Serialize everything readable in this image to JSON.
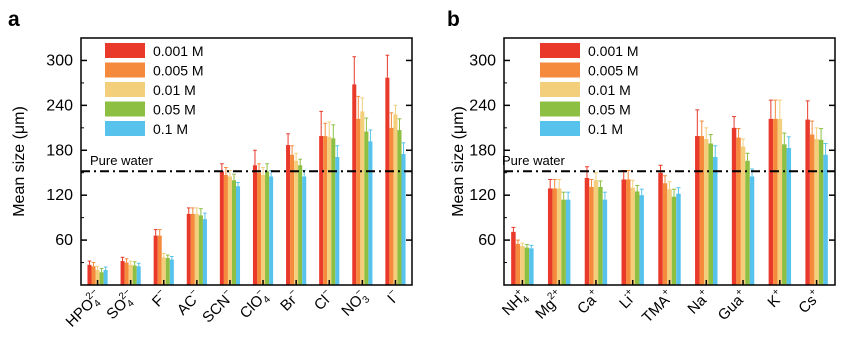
{
  "colors": {
    "c0.001": "#e8392b",
    "c0.005": "#f58a3c",
    "c0.01": "#f3cf7c",
    "c0.05": "#8dbf42",
    "c0.1": "#57c3ec",
    "error": "#d64a34",
    "axis": "#000000"
  },
  "chart_data": [
    {
      "type": "bar",
      "panel": "a",
      "ylabel": "Mean size (μm)",
      "ylim": [
        0,
        330
      ],
      "yticks": [
        60,
        120,
        180,
        240,
        300
      ],
      "legend_position": "top-left",
      "reference_line": {
        "label": "Pure water",
        "value": 152
      },
      "categories": [
        "HPO42−",
        "SO42−",
        "F−",
        "AC−",
        "SCN−",
        "ClO4−",
        "Br−",
        "Cl−",
        "NO3−",
        "I−"
      ],
      "category_labels": [
        {
          "base": "HPO",
          "sub": "4",
          "sup": "2−"
        },
        {
          "base": "SO",
          "sub": "4",
          "sup": "2−"
        },
        {
          "base": "F",
          "sub": "",
          "sup": "−"
        },
        {
          "base": "AC",
          "sub": "",
          "sup": "−"
        },
        {
          "base": "SCN",
          "sub": "",
          "sup": "−"
        },
        {
          "base": "ClO",
          "sub": "4",
          "sup": "−"
        },
        {
          "base": "Br",
          "sub": "",
          "sup": "−"
        },
        {
          "base": "Cl",
          "sub": "",
          "sup": "−"
        },
        {
          "base": "NO",
          "sub": "3",
          "sup": "−"
        },
        {
          "base": "I",
          "sub": "",
          "sup": "−"
        }
      ],
      "series": [
        {
          "name": "0.001 M",
          "color": "#e8392b",
          "values": [
            27,
            32,
            66,
            95,
            152,
            160,
            187,
            199,
            268,
            277
          ],
          "errors": [
            5,
            5,
            8,
            8,
            10,
            20,
            15,
            33,
            37,
            30
          ]
        },
        {
          "name": "0.005 M",
          "color": "#f58a3c",
          "values": [
            25,
            30,
            66,
            95,
            147,
            150,
            174,
            199,
            222,
            210
          ],
          "errors": [
            5,
            5,
            8,
            8,
            10,
            12,
            12,
            17,
            30,
            20
          ]
        },
        {
          "name": "0.01 M",
          "color": "#f3cf7c",
          "values": [
            20,
            27,
            37,
            95,
            145,
            147,
            166,
            198,
            232,
            228
          ],
          "errors": [
            5,
            5,
            5,
            8,
            8,
            10,
            10,
            20,
            18,
            12
          ]
        },
        {
          "name": "0.05 M",
          "color": "#8dbf42",
          "values": [
            17,
            26,
            36,
            93,
            140,
            152,
            160,
            196,
            205,
            207
          ],
          "errors": [
            5,
            5,
            4,
            9,
            8,
            10,
            8,
            18,
            18,
            15
          ]
        },
        {
          "name": "0.1 M",
          "color": "#57c3ec",
          "values": [
            20,
            25,
            34,
            88,
            132,
            145,
            145,
            171,
            192,
            175
          ],
          "errors": [
            4,
            4,
            4,
            8,
            5,
            8,
            8,
            15,
            15,
            15
          ]
        }
      ]
    },
    {
      "type": "bar",
      "panel": "b",
      "ylabel": "Mean size (μm)",
      "ylim": [
        0,
        330
      ],
      "yticks": [
        60,
        120,
        180,
        240,
        300
      ],
      "legend_position": "top-left",
      "reference_line": {
        "label": "Pure water",
        "value": 152
      },
      "categories": [
        "NH4+",
        "Mg2+",
        "Ca+",
        "Li+",
        "TMA+",
        "Na+",
        "Gua+",
        "K+",
        "Cs+"
      ],
      "category_labels": [
        {
          "base": "NH",
          "sub": "4",
          "sup": "+"
        },
        {
          "base": "Mg",
          "sub": "",
          "sup": "2+"
        },
        {
          "base": "Ca",
          "sub": "",
          "sup": "+"
        },
        {
          "base": "Li",
          "sub": "",
          "sup": "+"
        },
        {
          "base": "TMA",
          "sub": "",
          "sup": "+"
        },
        {
          "base": "Na",
          "sub": "",
          "sup": "+"
        },
        {
          "base": "Gua",
          "sub": "",
          "sup": "+"
        },
        {
          "base": "K",
          "sub": "",
          "sup": "+"
        },
        {
          "base": "Cs",
          "sub": "",
          "sup": "+"
        }
      ],
      "series": [
        {
          "name": "0.001 M",
          "color": "#e8392b",
          "values": [
            71,
            129,
            143,
            141,
            150,
            199,
            210,
            222,
            221
          ],
          "errors": [
            6,
            12,
            15,
            12,
            10,
            35,
            15,
            25,
            25
          ]
        },
        {
          "name": "0.005 M",
          "color": "#f58a3c",
          "values": [
            55,
            129,
            131,
            141,
            136,
            199,
            197,
            222,
            201
          ],
          "errors": [
            5,
            12,
            10,
            12,
            10,
            20,
            12,
            25,
            18
          ]
        },
        {
          "name": "0.01 M",
          "color": "#f3cf7c",
          "values": [
            52,
            129,
            140,
            130,
            128,
            195,
            185,
            222,
            195
          ],
          "errors": [
            4,
            12,
            10,
            10,
            10,
            15,
            10,
            25,
            15
          ]
        },
        {
          "name": "0.05 M",
          "color": "#8dbf42",
          "values": [
            50,
            114,
            131,
            125,
            118,
            189,
            166,
            188,
            194
          ],
          "errors": [
            4,
            10,
            8,
            8,
            10,
            12,
            10,
            15,
            15
          ]
        },
        {
          "name": "0.1 M",
          "color": "#57c3ec",
          "values": [
            49,
            114,
            114,
            120,
            122,
            171,
            145,
            183,
            174
          ],
          "errors": [
            4,
            10,
            10,
            8,
            8,
            15,
            10,
            15,
            15
          ]
        }
      ]
    }
  ]
}
